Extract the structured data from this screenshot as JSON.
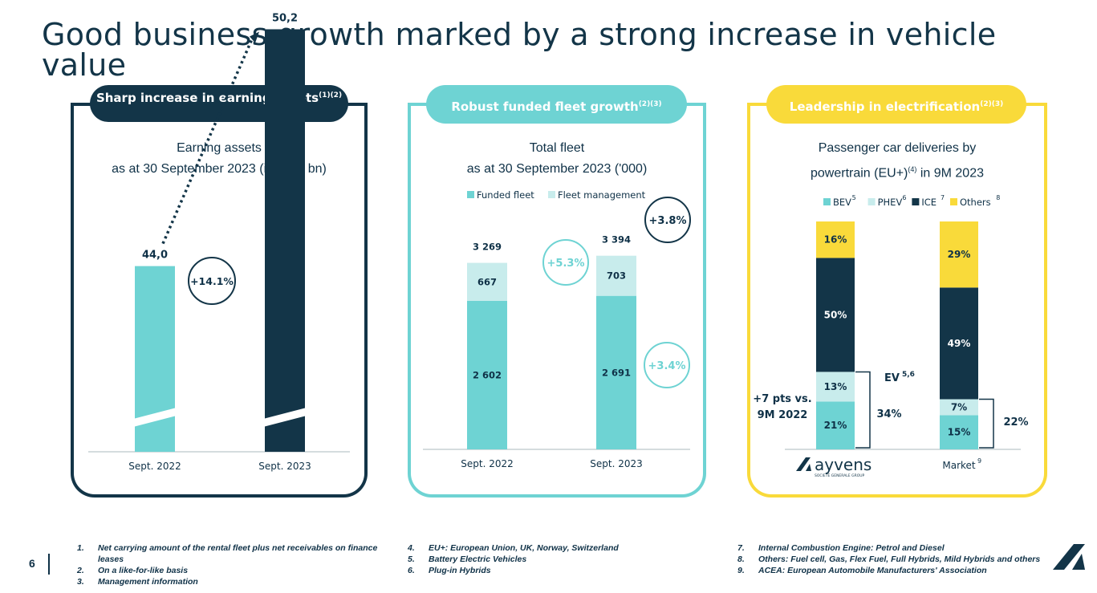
{
  "title": "Good business growth marked by a strong increase in vehicle value",
  "page_number": "6",
  "colors": {
    "navy": "#133548",
    "teal": "#6ed3d3",
    "light_teal": "#c8ecec",
    "yellow": "#f9da3a",
    "grey": "#c7d0d4"
  },
  "panel1": {
    "pill": "Sharp increase in earning assets",
    "pill_sup": "(1)(2)",
    "subtitle_line1": "Earning assets",
    "subtitle_line2": "as at 30 September 2023 (in EUR bn)",
    "growth": "+14.1%"
  },
  "panel2": {
    "pill": "Robust funded fleet growth",
    "pill_sup": "(2)(3)",
    "subtitle_line1": "Total fleet",
    "subtitle_line2": "as at 30 September 2023 ('000)",
    "growth_total": "+3.8%",
    "growth_fleet_mgmt": "+5.3%",
    "growth_funded": "+3.4%"
  },
  "panel3": {
    "pill": "Leadership in electrification",
    "pill_sup": "(2)(3)",
    "subtitle_line1": "Passenger car deliveries by",
    "subtitle_line2a": "powertrain (EU+)",
    "subtitle_sup": "(4)",
    "subtitle_line2b": " in 9M 2023",
    "ev_label": "EV",
    "ev_sup": "5,6",
    "ev_total_company": "34%",
    "ev_total_market": "22%",
    "pts_line1": "+7 pts vs.",
    "pts_line2": "9M 2022",
    "logo_text": "ayvens",
    "logo_tagline": "SOCIETE GENERALE GROUP",
    "market_label": "Market",
    "market_sup": "9"
  },
  "chart_data": [
    {
      "type": "bar",
      "title": "Earning assets as at 30 September 2023 (in EUR bn)",
      "categories": [
        "Sept. 2022",
        "Sept.  2023"
      ],
      "values": [
        44.0,
        50.2
      ],
      "value_labels": [
        "44,0",
        "50,2"
      ],
      "axis_break": true,
      "annotation": "+14.1%"
    },
    {
      "type": "bar",
      "stacked": true,
      "title": "Total fleet as at 30 September 2023 ('000)",
      "categories": [
        "Sept. 2022",
        "Sept. 2023"
      ],
      "series": [
        {
          "name": "Funded fleet",
          "values": [
            2602,
            2691
          ],
          "labels": [
            "2 602",
            "2 691"
          ],
          "color": "#6ed3d3"
        },
        {
          "name": "Fleet management",
          "values": [
            667,
            703
          ],
          "labels": [
            "667",
            "703"
          ],
          "color": "#c8ecec"
        }
      ],
      "totals": [
        3269,
        3394
      ],
      "total_labels": [
        "3 269",
        "3 394"
      ],
      "legend": "top"
    },
    {
      "type": "bar",
      "stacked": true,
      "percent": true,
      "title": "Passenger car deliveries by powertrain (EU+) in 9M 2023",
      "categories": [
        "ayvens",
        "Market"
      ],
      "series": [
        {
          "name": "BEV",
          "sup": "5",
          "values": [
            21,
            15
          ],
          "color": "#6ed3d3"
        },
        {
          "name": "PHEV",
          "sup": "6",
          "values": [
            13,
            7
          ],
          "color": "#c8ecec"
        },
        {
          "name": "ICE",
          "sup": "7",
          "values": [
            50,
            49
          ],
          "color": "#133548"
        },
        {
          "name": "Others",
          "sup": "8",
          "values": [
            16,
            29
          ],
          "color": "#f9da3a"
        }
      ],
      "legend": "top"
    }
  ],
  "footnotes": [
    {
      "num": "1.",
      "text": "Net carrying amount of the rental fleet plus net receivables on finance leases"
    },
    {
      "num": "2.",
      "text": "On a like-for-like basis"
    },
    {
      "num": "3.",
      "text": "Management information"
    },
    {
      "num": "4.",
      "text": "EU+: European Union, UK, Norway, Switzerland"
    },
    {
      "num": "5.",
      "text": "Battery Electric Vehicles"
    },
    {
      "num": "6.",
      "text": "Plug-in Hybrids"
    },
    {
      "num": "7.",
      "text": "Internal Combustion Engine: Petrol and Diesel"
    },
    {
      "num": "8.",
      "text": "Others: Fuel cell, Gas, Flex Fuel, Full Hybrids,  Mild Hybrids and others"
    },
    {
      "num": "9.",
      "text": "ACEA: European Automobile Manufacturers' Association"
    }
  ]
}
